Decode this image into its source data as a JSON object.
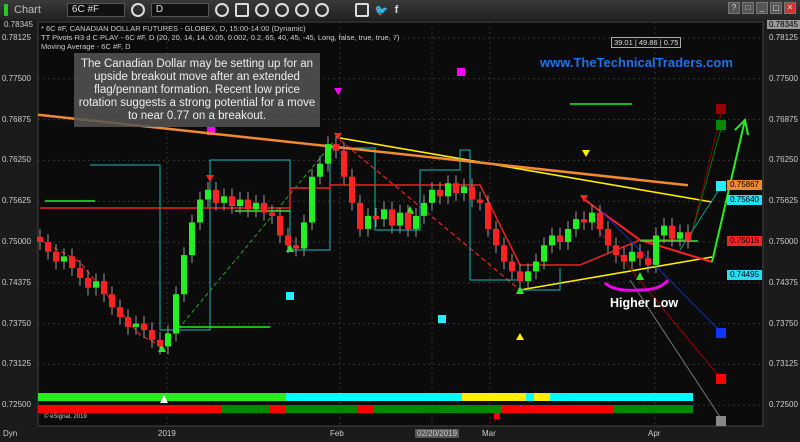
{
  "toolbar": {
    "app_label": "Chart",
    "symbol": "6C #F",
    "interval": "D",
    "window_buttons": [
      "?",
      "□",
      "_",
      "▢",
      "✕"
    ]
  },
  "legend": {
    "line1": "* 6C #F, CANADIAN DOLLAR FUTURES - GLOBEX, D, 15:00-14:00 (Dynamic)",
    "line2": "TT Pivots R3 d C PLAY - 6C #F, D (20, 20, 14, 14, 0.05, 0.002, 0.2, 65, 40, 45, -45, Long, false, true, true, 7)",
    "line3": "Moving Average - 6C #F, D"
  },
  "annotation": "The Canadian Dollar may be setting up for an upside breakout move after an extended flag/pennant formation.  Recent low price rotation suggests a strong potential for a move to near 0.77 on a breakout.",
  "website": "www.TheTechnicalTraders.com",
  "readout": "39.01 | 49.86 | 0.75",
  "higher_low_label": "Higher Low",
  "copyright": "© eSignal, 2019",
  "dyn_label": "Dyn",
  "dates": {
    "d2019": "2019",
    "feb": "Feb",
    "cursor": "02/20/2019",
    "mar": "Mar",
    "apr": "Apr"
  },
  "chart_data": {
    "type": "candlestick",
    "title": "6C #F, CANADIAN DOLLAR FUTURES - GLOBEX, D",
    "ylim": [
      0.7225,
      0.78345
    ],
    "yticks": [
      "0.78125",
      "0.77500",
      "0.76875",
      "0.76250",
      "0.75625",
      "0.75000",
      "0.74375",
      "0.73750",
      "0.73125",
      "0.72500"
    ],
    "top_label": "0.78345",
    "price_tags": [
      {
        "value": "0.75867",
        "color": "#f08a30"
      },
      {
        "value": "0.75640",
        "color": "#22e0f0"
      },
      {
        "value": "0.75015",
        "color": "#ff2020"
      },
      {
        "value": "0.74495",
        "color": "#22e0f0"
      }
    ],
    "closes": [
      0.75,
      0.7485,
      0.747,
      0.7478,
      0.746,
      0.7445,
      0.743,
      0.744,
      0.742,
      0.74,
      0.7385,
      0.737,
      0.7375,
      0.7365,
      0.735,
      0.734,
      0.736,
      0.742,
      0.748,
      0.753,
      0.7565,
      0.758,
      0.756,
      0.757,
      0.7555,
      0.7565,
      0.755,
      0.756,
      0.7545,
      0.754,
      0.751,
      0.7495,
      0.749,
      0.753,
      0.76,
      0.762,
      0.765,
      0.764,
      0.76,
      0.756,
      0.752,
      0.754,
      0.7535,
      0.755,
      0.7525,
      0.7545,
      0.752,
      0.754,
      0.756,
      0.758,
      0.757,
      0.759,
      0.7575,
      0.7585,
      0.7565,
      0.756,
      0.752,
      0.7495,
      0.747,
      0.7455,
      0.744,
      0.7455,
      0.747,
      0.7495,
      0.751,
      0.75,
      0.752,
      0.7535,
      0.753,
      0.7545,
      0.752,
      0.7495,
      0.748,
      0.747,
      0.7485,
      0.7475,
      0.7465,
      0.751,
      0.7525,
      0.7505,
      0.7515,
      0.7502
    ],
    "moving_average": {
      "start": 0.7695,
      "end": 0.7587,
      "color": "#f08a30"
    },
    "colors": {
      "up": "#22ee22",
      "down": "#ff2222"
    },
    "indicator_rows": [
      [
        {
          "from": 0,
          "to": 31,
          "color": "#22ee22"
        },
        {
          "from": 31,
          "to": 53,
          "color": "#00ffff"
        },
        {
          "from": 53,
          "to": 61,
          "color": "#ffee00"
        },
        {
          "from": 61,
          "to": 62,
          "color": "#00ffff"
        },
        {
          "from": 62,
          "to": 64,
          "color": "#ffee00"
        },
        {
          "from": 64,
          "to": 81,
          "color": "#00ffff"
        }
      ],
      [
        {
          "from": 0,
          "to": 23,
          "color": "#ff0000"
        },
        {
          "from": 23,
          "to": 29,
          "color": "#008800"
        },
        {
          "from": 29,
          "to": 31,
          "color": "#ff0000"
        },
        {
          "from": 31,
          "to": 40,
          "color": "#008800"
        },
        {
          "from": 40,
          "to": 42,
          "color": "#ff0000"
        },
        {
          "from": 42,
          "to": 58,
          "color": "#008800"
        },
        {
          "from": 58,
          "to": 72,
          "color": "#ff0000"
        },
        {
          "from": 72,
          "to": 81,
          "color": "#008800"
        }
      ]
    ]
  }
}
